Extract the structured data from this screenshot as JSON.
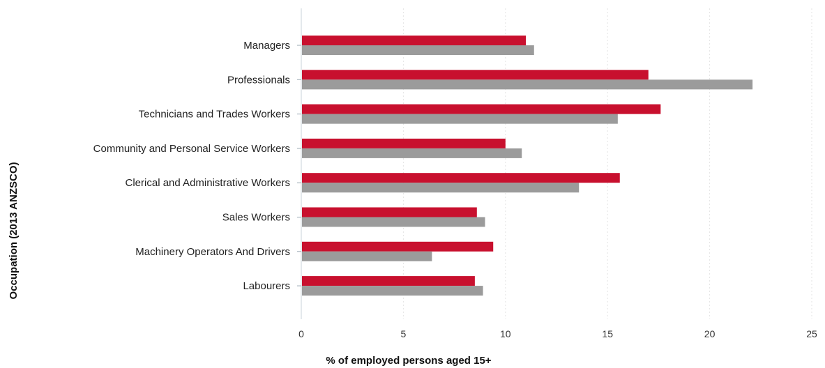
{
  "chart_data": {
    "type": "bar",
    "orientation": "horizontal",
    "title": "",
    "xlabel": "% of employed persons aged 15+",
    "ylabel": "Occupation (2013 ANZSCO)",
    "xlim": [
      0,
      25
    ],
    "xticks": [
      "0",
      "5",
      "10",
      "15",
      "20",
      "25"
    ],
    "grid": true,
    "legend": "none",
    "categories": [
      "Managers",
      "Professionals",
      "Technicians and Trades Workers",
      "Community and Personal Service Workers",
      "Clerical and Administrative Workers",
      "Sales Workers",
      "Machinery Operators And Drivers",
      "Labourers"
    ],
    "series": [
      {
        "color": "#c8102e",
        "values": [
          11.0,
          17.0,
          17.6,
          10.0,
          15.6,
          8.6,
          9.4,
          8.5
        ]
      },
      {
        "color": "#9b9b9b",
        "values": [
          11.4,
          22.1,
          15.5,
          10.8,
          13.6,
          9.0,
          6.4,
          8.9
        ]
      }
    ]
  }
}
